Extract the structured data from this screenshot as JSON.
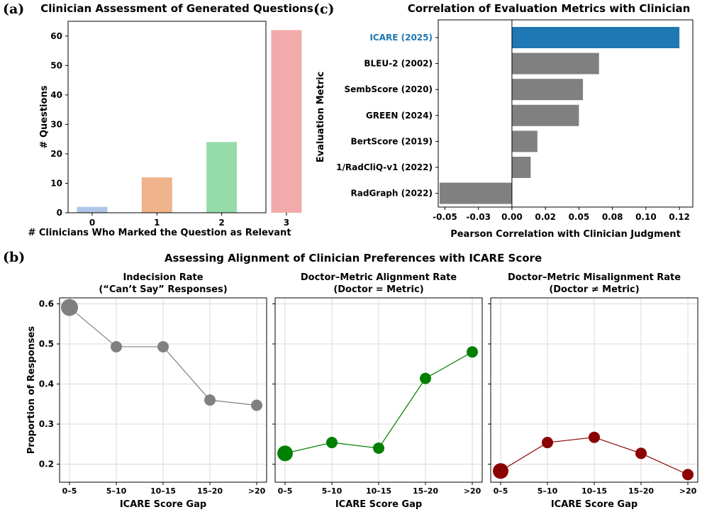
{
  "panel_labels": {
    "a": "(a)",
    "b": "(b)",
    "c": "(c)"
  },
  "section_b_title": "Assessing Alignment of Clinician Preferences with ICARE Score",
  "colors": {
    "highlight": "#1f77b4",
    "gray_bar": "#808080",
    "bars_a": [
      "#aec7e8",
      "#f0b48c",
      "#96dcaa",
      "#f2aaaa"
    ],
    "indecision": "#808080",
    "alignment": "#008000",
    "misalignment": "#8b0000"
  },
  "chart_data": [
    {
      "id": "a",
      "type": "bar",
      "title": "Clinician Assessment of Generated Questions",
      "xlabel": "# Clinicians Who Marked the Question as Relevant",
      "ylabel": "# Questions",
      "categories": [
        "0",
        "1",
        "2",
        "3"
      ],
      "values": [
        2,
        12,
        24,
        62
      ],
      "ylim": [
        0,
        65
      ],
      "yticks": [
        0,
        10,
        20,
        30,
        40,
        50,
        60
      ],
      "grid": false
    },
    {
      "id": "c",
      "type": "bar",
      "orientation": "horizontal",
      "title": "Correlation of Evaluation Metrics with Clinician",
      "xlabel": "Pearson Correlation with Clinician Judgment",
      "ylabel": "Evaluation Metric",
      "categories": [
        "ICARE (2025)",
        "BLEU-2 (2002)",
        "SembScore (2020)",
        "GREEN (2024)",
        "BertScore (2019)",
        "1/RadCliQ-v1 (2022)",
        "RadGraph (2022)"
      ],
      "values": [
        0.125,
        0.065,
        0.053,
        0.05,
        0.019,
        0.014,
        -0.054
      ],
      "highlighted": "ICARE (2025)",
      "xlim": [
        -0.055,
        0.135
      ],
      "xticks": [
        -0.05,
        -0.025,
        0,
        0.025,
        0.05,
        0.075,
        0.1,
        0.125
      ],
      "xtick_labels": [
        "-0.05",
        "-0.03",
        "0.00",
        "0.02",
        "0.05",
        "0.08",
        "0.10",
        "0.12"
      ],
      "grid": false
    },
    {
      "id": "b1",
      "type": "line",
      "title_lines": [
        "Indecision Rate",
        "(“Can’t Say” Responses)"
      ],
      "xlabel": "ICARE Score Gap",
      "ylabel": "Proportion of Responses",
      "categories": [
        "0–5",
        "5–10",
        "10–15",
        "15–20",
        ">20"
      ],
      "values": [
        0.591,
        0.493,
        0.493,
        0.36,
        0.347
      ],
      "marker_sizes": [
        12,
        8,
        8,
        8,
        8
      ],
      "color_key": "indecision",
      "ylim": [
        0.155,
        0.615
      ],
      "yticks": [
        0.2,
        0.3,
        0.4,
        0.5,
        0.6
      ],
      "ytick_labels": [
        "0.2",
        "0.3",
        "0.4",
        "0.5",
        "0.6"
      ],
      "grid": true
    },
    {
      "id": "b2",
      "type": "line",
      "title_lines": [
        "Doctor–Metric Alignment Rate",
        "(Doctor = Metric)"
      ],
      "xlabel": "ICARE Score Gap",
      "categories": [
        "0–5",
        "5–10",
        "10–15",
        "15–20",
        ">20"
      ],
      "values": [
        0.227,
        0.254,
        0.24,
        0.414,
        0.48
      ],
      "marker_sizes": [
        11,
        8,
        8,
        8,
        8
      ],
      "color_key": "alignment",
      "ylim": [
        0.155,
        0.615
      ],
      "yticks": [
        0.2,
        0.3,
        0.4,
        0.5,
        0.6
      ],
      "grid": true
    },
    {
      "id": "b3",
      "type": "line",
      "title_lines": [
        "Doctor–Metric Misalignment Rate",
        "(Doctor ≠ Metric)"
      ],
      "xlabel": "ICARE Score Gap",
      "categories": [
        "0–5",
        "5–10",
        "10–15",
        "15–20",
        ">20"
      ],
      "values": [
        0.183,
        0.254,
        0.267,
        0.227,
        0.174
      ],
      "marker_sizes": [
        11,
        8,
        8,
        8,
        8
      ],
      "color_key": "misalignment",
      "ylim": [
        0.155,
        0.615
      ],
      "yticks": [
        0.2,
        0.3,
        0.4,
        0.5,
        0.6
      ],
      "grid": true
    }
  ]
}
